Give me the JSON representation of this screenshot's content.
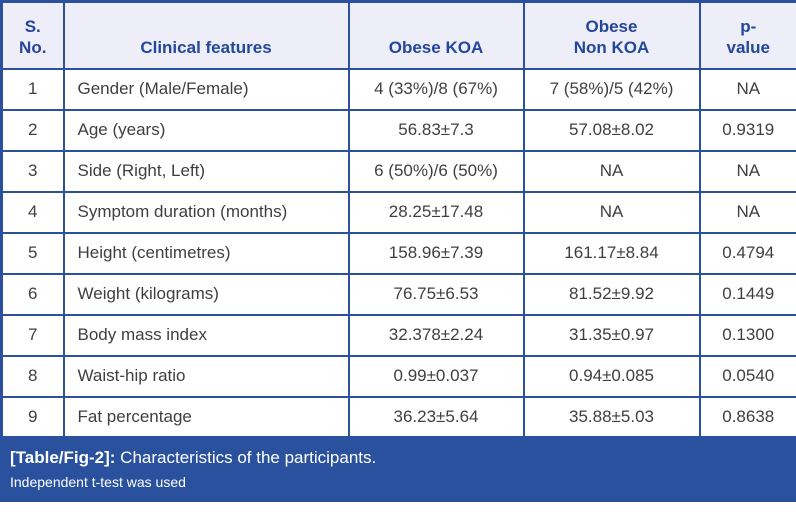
{
  "table": {
    "columns": [
      {
        "key": "sno",
        "label": "S.\nNo."
      },
      {
        "key": "feature",
        "label": "Clinical features"
      },
      {
        "key": "obese_koa",
        "label": "Obese KOA"
      },
      {
        "key": "obese_non_koa",
        "label": "Obese\nNon KOA"
      },
      {
        "key": "p_value",
        "label": "p-\nvalue"
      }
    ],
    "rows": [
      [
        "1",
        "Gender (Male/Female)",
        "4 (33%)/8 (67%)",
        "7 (58%)/5 (42%)",
        "NA"
      ],
      [
        "2",
        "Age (years)",
        "56.83±7.3",
        "57.08±8.02",
        "0.9319"
      ],
      [
        "3",
        "Side (Right, Left)",
        "6 (50%)/6 (50%)",
        "NA",
        "NA"
      ],
      [
        "4",
        "Symptom duration (months)",
        "28.25±17.48",
        "NA",
        "NA"
      ],
      [
        "5",
        "Height (centimetres)",
        "158.96±7.39",
        "161.17±8.84",
        "0.4794"
      ],
      [
        "6",
        "Weight (kilograms)",
        "76.75±6.53",
        "81.52±9.92",
        "0.1449"
      ],
      [
        "7",
        "Body mass index",
        "32.378±2.24",
        "31.35±0.97",
        "0.1300"
      ],
      [
        "8",
        "Waist-hip ratio",
        "0.99±0.037",
        "0.94±0.085",
        "0.0540"
      ],
      [
        "9",
        "Fat percentage",
        "36.23±5.64",
        "35.88±5.03",
        "0.8638"
      ]
    ]
  },
  "caption": {
    "tag": "[Table/Fig-2]:",
    "title": " Characteristics of the participants.",
    "note": "Independent t-test was used"
  },
  "colors": {
    "border": "#2b509d",
    "header_bg": "#edeef7",
    "header_text": "#24479b",
    "body_text": "#3f3f3f",
    "caption_bg": "#2a519e",
    "caption_text": "#ffffff"
  }
}
